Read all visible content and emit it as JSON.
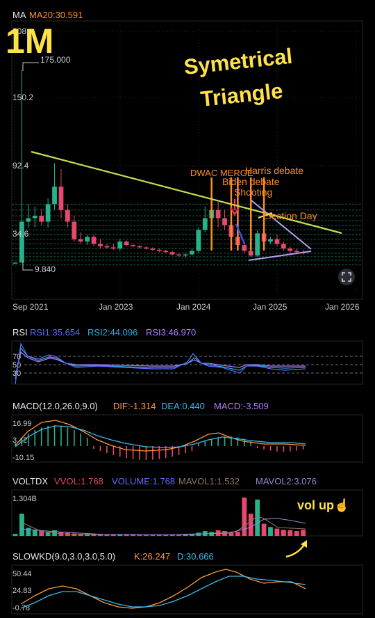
{
  "overlay": {
    "timeframe": "1M",
    "pattern_title_line1": "Symetrical",
    "pattern_title_line2": "Triangle",
    "vol_note": "vol up☝️"
  },
  "colors": {
    "background": "#000000",
    "up": "#26b38c",
    "down": "#e8476e",
    "grid": "#2b2f36",
    "axis_text": "#c9ccd2",
    "annotation_yellow": "#ffe14a",
    "trendline": "#c8dc52",
    "triangle_purple": "#b79cf0",
    "event_orange": "#ff8c26",
    "event_red": "#e8334a",
    "dif_orange": "#ff9a3c",
    "dea_cyan": "#3db8e8",
    "rsi1_blue": "#5b6bff",
    "rsi2_cyan": "#2aa8e0",
    "rsi3_purple": "#b07cff"
  },
  "main_panel": {
    "indicator_name": "MA",
    "ma_label": "MA20:30.591",
    "y_tick_labels": [
      "208",
      "150.2",
      "92.4",
      "34.6"
    ],
    "high_label": "175.000",
    "low_label": "9.840",
    "x_tick_labels": [
      "Sep 2021",
      "Jan 2023",
      "Jan 2024",
      "Jan 2025",
      "Jan 2026"
    ],
    "events": [
      {
        "label": "DWAC MERGE",
        "date": "2024-03",
        "color": "#ff8c26"
      },
      {
        "label": "Harris debate",
        "date": "2024-09",
        "color": "#ff8c26"
      },
      {
        "label": "Biden debate",
        "date": "2024-06",
        "color": "#ff8c26"
      },
      {
        "label": "Shooting",
        "date": "2024-07",
        "color": "#ff8c26"
      },
      {
        "label": "Election Day",
        "date": "2024-11",
        "color": "#ff8c26"
      }
    ]
  },
  "rsi_panel": {
    "name": "RSI",
    "rsi1_label": "RSI1:35.654",
    "rsi2_label": "RSI2:44.096",
    "rsi3_label": "RSI3:46.970",
    "levels": [
      "70",
      "50",
      "30"
    ]
  },
  "macd_panel": {
    "name": "MACD(12.0,26.0,9.0)",
    "dif_label": "DIF:-1.314",
    "dea_label": "DEA:0.440",
    "macd_label": "MACD:-3.509",
    "y_tick_labels": [
      "16.99",
      "3.42",
      "-10.15"
    ]
  },
  "volume_panel": {
    "name": "VOLTDX",
    "vvol_label": "VVOL:1.768",
    "volume_label": "VOLUME:1.768",
    "mavol1_label": "MAVOL1:1.532",
    "mavol2_label": "MAVOL2:3.076",
    "y_tick_labels": [
      "1.304B"
    ]
  },
  "kd_panel": {
    "name": "SLOWKD(9.0,3.0,3.0,5.0)",
    "k_label": "K:26.247",
    "d_label": "D:30.666",
    "y_tick_labels": [
      "50.44",
      "24.83",
      "-0.78"
    ]
  },
  "chart_data": {
    "type": "candlestick",
    "interval": "monthly",
    "x_axis_range": [
      "2021-09",
      "2026-01"
    ],
    "y_axis_range": [
      5,
      208
    ],
    "grid": true,
    "candles": [
      {
        "date": "2021-09",
        "open": 10,
        "high": 10,
        "low": 10,
        "close": 10
      },
      {
        "date": "2021-10",
        "open": 10,
        "high": 175,
        "low": 9.84,
        "close": 45
      },
      {
        "date": "2021-11",
        "open": 45,
        "high": 60,
        "low": 40,
        "close": 48
      },
      {
        "date": "2021-12",
        "open": 48,
        "high": 58,
        "low": 40,
        "close": 50
      },
      {
        "date": "2022-01",
        "open": 50,
        "high": 56,
        "low": 42,
        "close": 45
      },
      {
        "date": "2022-02",
        "open": 45,
        "high": 65,
        "low": 40,
        "close": 60
      },
      {
        "date": "2022-03",
        "open": 60,
        "high": 95,
        "low": 55,
        "close": 75
      },
      {
        "date": "2022-04",
        "open": 75,
        "high": 90,
        "low": 48,
        "close": 55
      },
      {
        "date": "2022-05",
        "open": 55,
        "high": 60,
        "low": 40,
        "close": 45
      },
      {
        "date": "2022-06",
        "open": 45,
        "high": 50,
        "low": 28,
        "close": 30
      },
      {
        "date": "2022-07",
        "open": 30,
        "high": 36,
        "low": 26,
        "close": 28
      },
      {
        "date": "2022-08",
        "open": 28,
        "high": 34,
        "low": 25,
        "close": 32
      },
      {
        "date": "2022-09",
        "open": 32,
        "high": 34,
        "low": 24,
        "close": 26
      },
      {
        "date": "2022-10",
        "open": 26,
        "high": 30,
        "low": 22,
        "close": 24
      },
      {
        "date": "2022-11",
        "open": 24,
        "high": 26,
        "low": 22,
        "close": 23
      },
      {
        "date": "2022-12",
        "open": 23,
        "high": 26,
        "low": 21,
        "close": 22
      },
      {
        "date": "2023-01",
        "open": 22,
        "high": 30,
        "low": 20,
        "close": 28
      },
      {
        "date": "2023-02",
        "open": 28,
        "high": 29,
        "low": 24,
        "close": 25
      },
      {
        "date": "2023-03",
        "open": 25,
        "high": 26,
        "low": 23,
        "close": 24
      },
      {
        "date": "2023-04",
        "open": 24,
        "high": 25,
        "low": 22,
        "close": 23
      },
      {
        "date": "2023-05",
        "open": 23,
        "high": 24,
        "low": 21,
        "close": 22
      },
      {
        "date": "2023-06",
        "open": 22,
        "high": 23,
        "low": 20,
        "close": 21
      },
      {
        "date": "2023-07",
        "open": 21,
        "high": 22,
        "low": 19,
        "close": 20
      },
      {
        "date": "2023-08",
        "open": 20,
        "high": 21,
        "low": 18,
        "close": 19
      },
      {
        "date": "2023-09",
        "open": 19,
        "high": 20,
        "low": 16,
        "close": 17
      },
      {
        "date": "2023-10",
        "open": 17,
        "high": 18,
        "low": 15,
        "close": 16
      },
      {
        "date": "2023-11",
        "open": 16,
        "high": 18,
        "low": 14,
        "close": 17
      },
      {
        "date": "2023-12",
        "open": 17,
        "high": 22,
        "low": 16,
        "close": 20
      },
      {
        "date": "2024-01",
        "open": 20,
        "high": 40,
        "low": 18,
        "close": 38
      },
      {
        "date": "2024-02",
        "open": 38,
        "high": 58,
        "low": 36,
        "close": 48
      },
      {
        "date": "2024-03",
        "open": 48,
        "high": 75,
        "low": 35,
        "close": 55
      },
      {
        "date": "2024-04",
        "open": 55,
        "high": 62,
        "low": 40,
        "close": 48
      },
      {
        "date": "2024-05",
        "open": 48,
        "high": 55,
        "low": 38,
        "close": 42
      },
      {
        "date": "2024-06",
        "open": 42,
        "high": 50,
        "low": 28,
        "close": 32
      },
      {
        "date": "2024-07",
        "open": 32,
        "high": 40,
        "low": 22,
        "close": 25
      },
      {
        "date": "2024-08",
        "open": 25,
        "high": 28,
        "low": 18,
        "close": 20
      },
      {
        "date": "2024-09",
        "open": 20,
        "high": 24,
        "low": 15,
        "close": 16
      },
      {
        "date": "2024-10",
        "open": 16,
        "high": 38,
        "low": 15,
        "close": 35
      },
      {
        "date": "2024-11",
        "open": 35,
        "high": 40,
        "low": 25,
        "close": 28
      },
      {
        "date": "2024-12",
        "open": 28,
        "high": 32,
        "low": 26,
        "close": 30
      },
      {
        "date": "2025-01",
        "open": 30,
        "high": 34,
        "low": 24,
        "close": 26
      },
      {
        "date": "2025-02",
        "open": 26,
        "high": 28,
        "low": 20,
        "close": 22
      },
      {
        "date": "2025-03",
        "open": 22,
        "high": 24,
        "low": 18,
        "close": 20
      },
      {
        "date": "2025-04",
        "open": 20,
        "high": 22,
        "low": 17,
        "close": 19
      },
      {
        "date": "2025-05",
        "open": 19,
        "high": 21,
        "low": 17,
        "close": 18
      }
    ],
    "horizontal_levels": [
      8,
      12,
      15,
      18,
      22,
      26,
      30,
      34,
      38,
      42,
      46,
      50,
      55,
      60
    ]
  }
}
